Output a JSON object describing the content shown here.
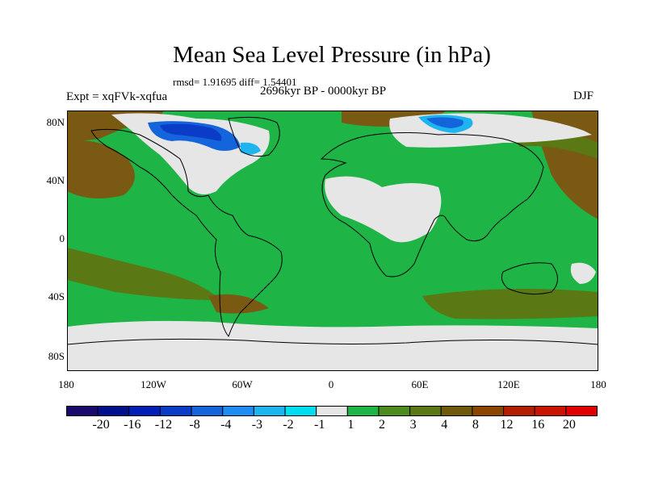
{
  "title": "Mean Sea Level Pressure (in hPa)",
  "stats": "rmsd= 1.91695 diff= 1.54401",
  "expt_label": "Expt = xqFVk-xqfua",
  "period_label": "2696kyr BP - 0000kyr BP",
  "season_label": "DJF",
  "lat_ticks": [
    "80N",
    "40N",
    "0",
    "40S",
    "80S"
  ],
  "lon_ticks": [
    "180",
    "120W",
    "60W",
    "0",
    "60E",
    "120E",
    "180"
  ],
  "colorbar": {
    "colors": [
      "#1a0a6e",
      "#000f8c",
      "#001fb4",
      "#0a3cc8",
      "#1464dc",
      "#1e8cf0",
      "#1eb4f0",
      "#00dcf0",
      "#e6e6e6",
      "#1eb446",
      "#4c8c1e",
      "#5a7814",
      "#6e5a0a",
      "#8c4600",
      "#b41e00",
      "#c81400",
      "#e10000"
    ],
    "labels": [
      "-20",
      "-16",
      "-12",
      "-8",
      "-4",
      "-3",
      "-2",
      "-1",
      "1",
      "2",
      "3",
      "4",
      "8",
      "12",
      "16",
      "20"
    ]
  },
  "map_colors": {
    "green": "#1eb446",
    "light_gray": "#e6e6e6",
    "brown": "#7a5a12",
    "dark_olive": "#5a7814",
    "blue_dark": "#0a3cc8",
    "blue_mid": "#1464dc",
    "cyan": "#1eb4f0",
    "coast": "#000000"
  }
}
